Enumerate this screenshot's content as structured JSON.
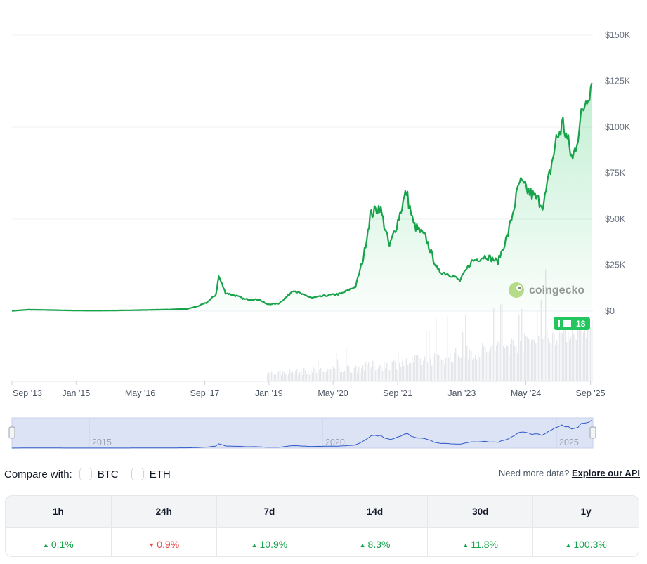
{
  "chart_data": {
    "type": "area",
    "title": "",
    "xlabel": "",
    "ylabel": "",
    "ylim": [
      0,
      150000
    ],
    "y_tick_labels": [
      "$150K",
      "$125K",
      "$100K",
      "$75K",
      "$50K",
      "$25K",
      "$0"
    ],
    "x_tick_labels": [
      "Sep '13",
      "Jan '15",
      "May '16",
      "Sep '17",
      "Jan '19",
      "May '20",
      "Sep '21",
      "Jan '23",
      "May '24",
      "Sep '25"
    ],
    "series": [
      {
        "values_x": [
          2013.67,
          2014.0,
          2014.5,
          2015.0,
          2015.5,
          2016.0,
          2016.5,
          2017.0,
          2017.3,
          2017.5,
          2017.7,
          2017.9,
          2017.96,
          2018.1,
          2018.3,
          2018.5,
          2018.8,
          2018.96,
          2019.2,
          2019.4,
          2019.5,
          2019.7,
          2019.9,
          2020.2,
          2020.5,
          2020.8,
          2020.96,
          2021.1,
          2021.3,
          2021.5,
          2021.65,
          2021.85,
          2022.0,
          2022.25,
          2022.5,
          2022.8,
          2022.96,
          2023.2,
          2023.5,
          2023.75,
          2023.96,
          2024.2,
          2024.5,
          2024.7,
          2024.96,
          2025.1,
          2025.3,
          2025.5,
          2025.6,
          2025.7
        ],
        "values_y": [
          120,
          800,
          600,
          300,
          260,
          420,
          660,
          950,
          1200,
          2500,
          4500,
          9000,
          19000,
          10000,
          8500,
          6500,
          6300,
          3700,
          4100,
          8500,
          11500,
          9000,
          7200,
          8500,
          9500,
          13500,
          29000,
          52000,
          57000,
          35000,
          47000,
          65000,
          47000,
          40000,
          22000,
          19500,
          16500,
          27000,
          30000,
          26800,
          42000,
          70000,
          62000,
          58000,
          93000,
          102000,
          82000,
          108000,
          118000,
          124000
        ]
      }
    ],
    "volume_badge": "18",
    "navigator_labels": [
      "2015",
      "2020",
      "2025"
    ],
    "colors": {
      "line": "#16a34a",
      "area_top": "#22c55e",
      "volume": "#e5e7eb",
      "navigator_fill": "#dbe3f5",
      "navigator_line": "#2f58c9"
    },
    "grid": true,
    "watermark": "coingecko"
  },
  "compare": {
    "label": "Compare with:",
    "options": [
      "BTC",
      "ETH"
    ]
  },
  "more": {
    "text": "Need more data?",
    "link": "Explore our API"
  },
  "changes": {
    "headers": [
      "1h",
      "24h",
      "7d",
      "14d",
      "30d",
      "1y"
    ],
    "values": [
      "0.1%",
      "0.9%",
      "10.9%",
      "8.3%",
      "11.8%",
      "100.3%"
    ],
    "directions": [
      "up",
      "down",
      "up",
      "up",
      "up",
      "up"
    ]
  }
}
